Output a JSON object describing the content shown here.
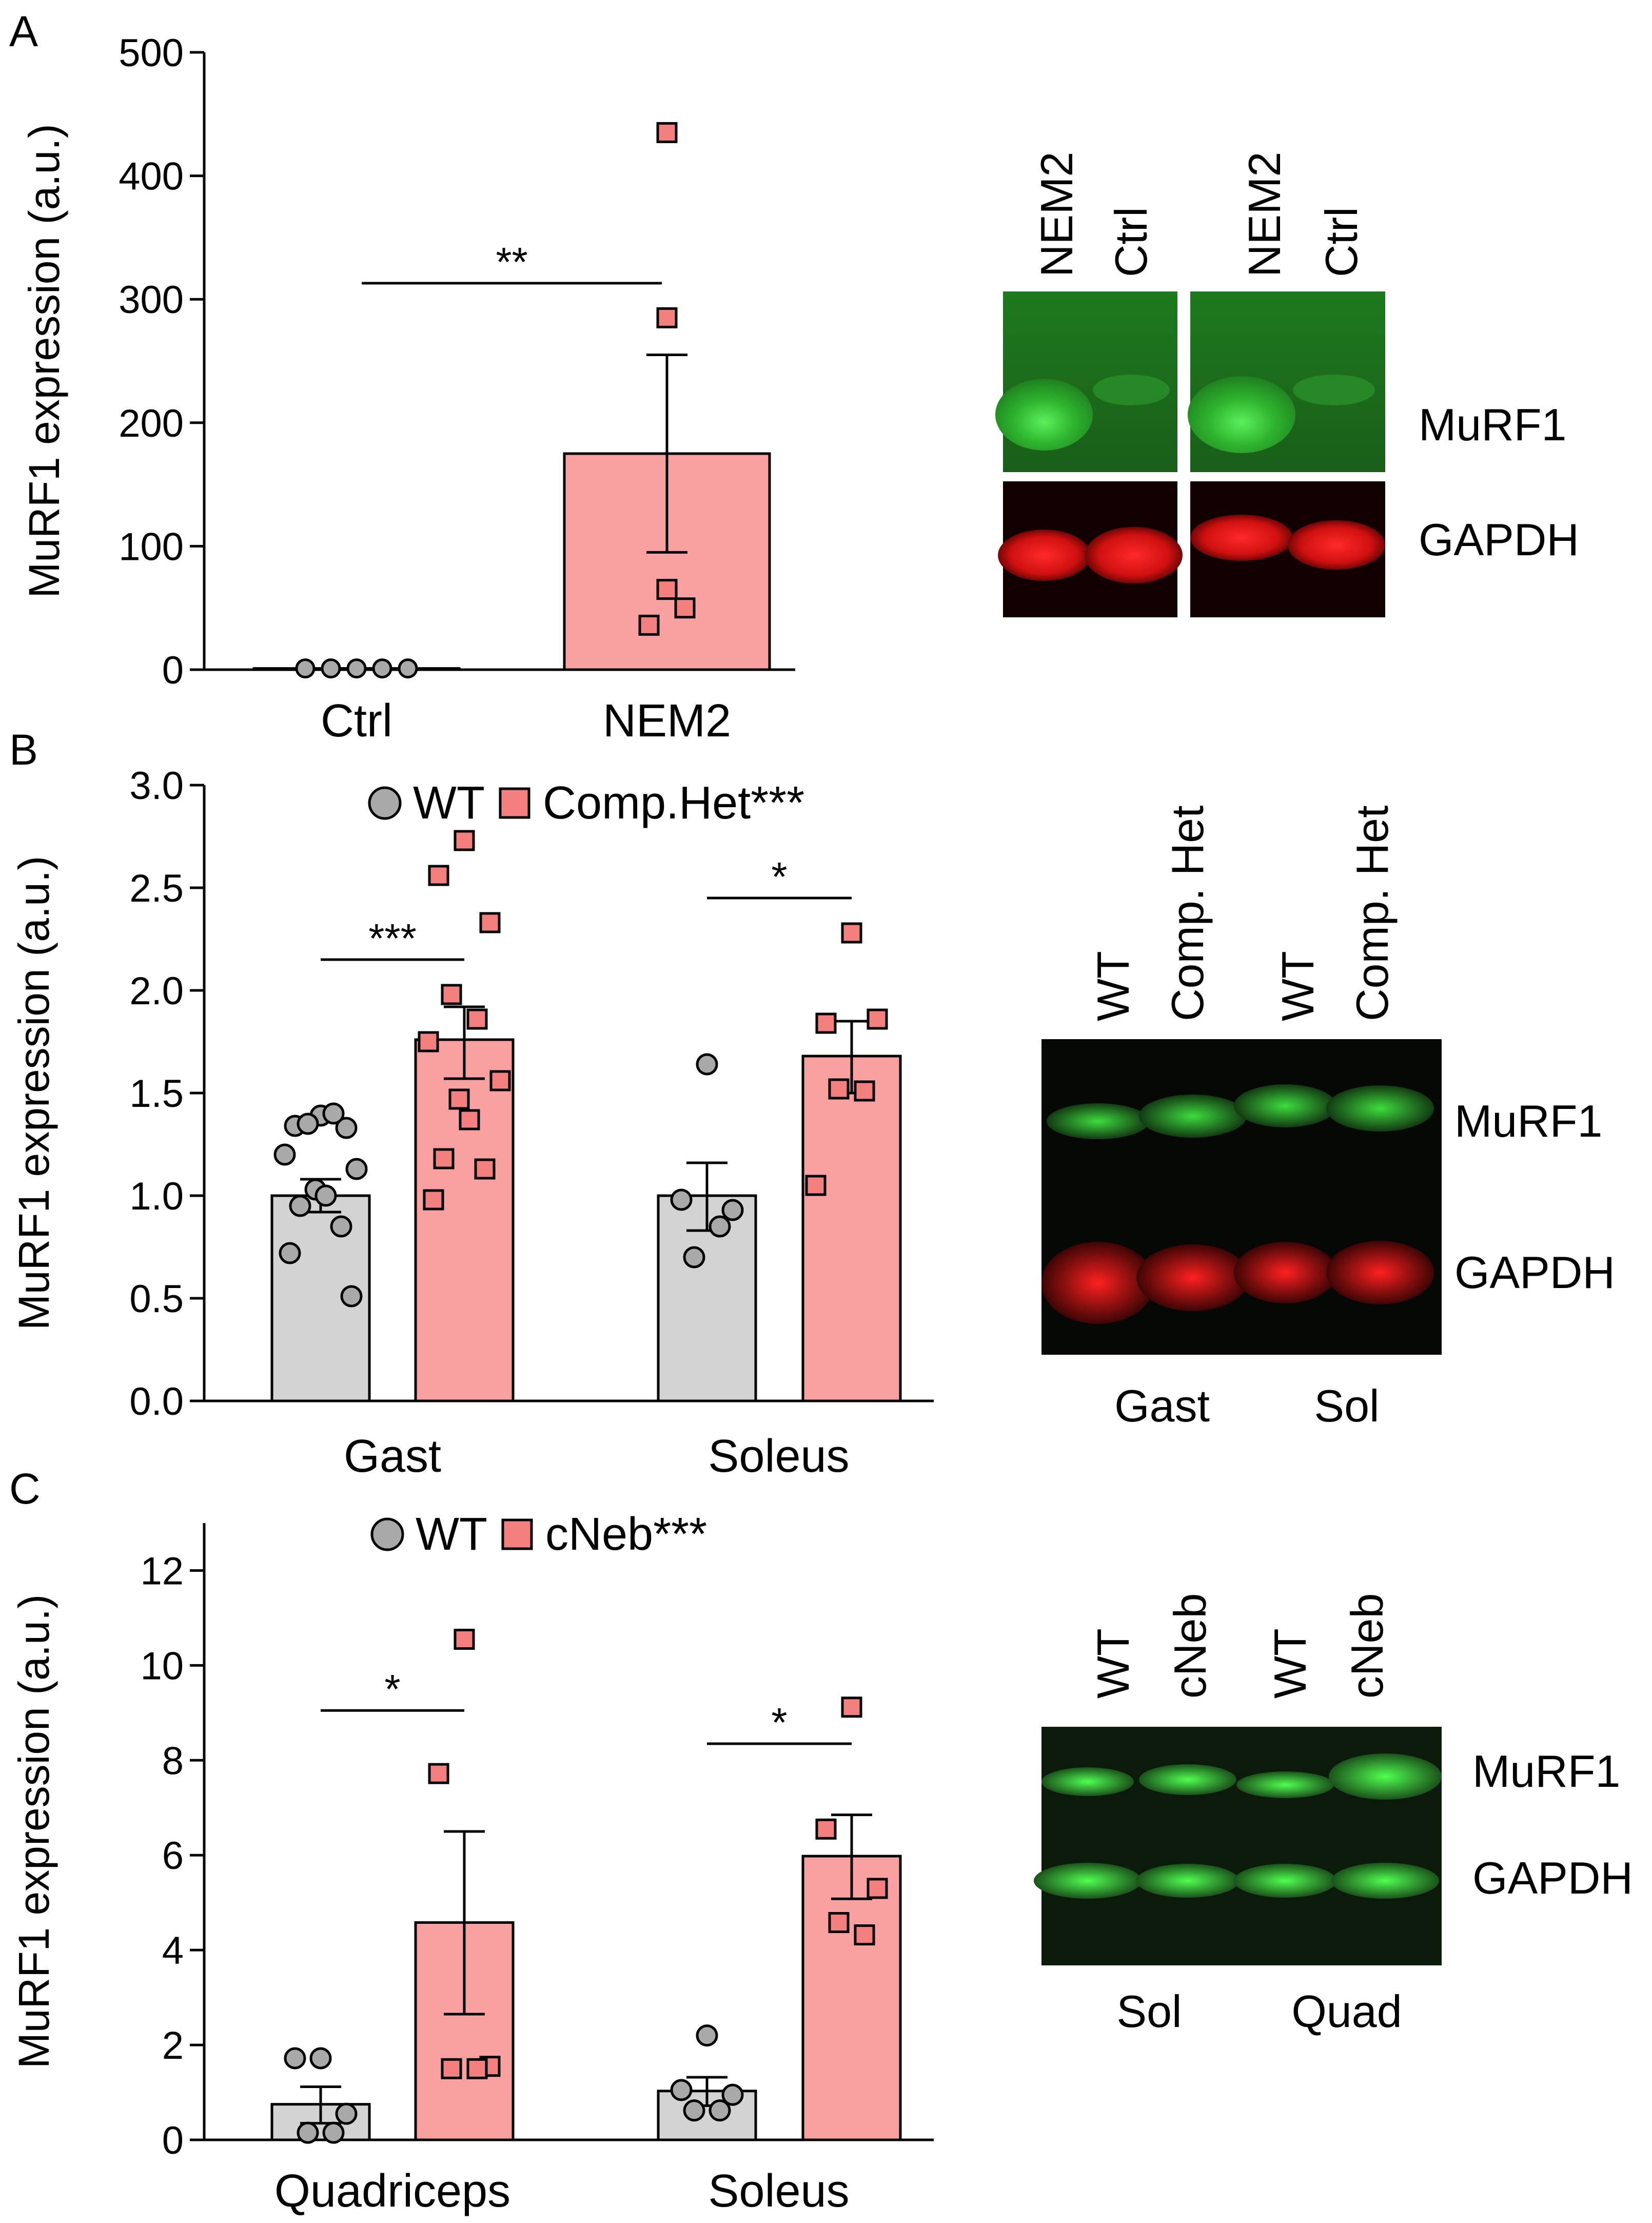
{
  "colors": {
    "wt_fill": "#d3d3d3",
    "wt_point": "#a9a9a9",
    "mutant_fill": "#f9a0a0",
    "mutant_point": "#f47f7f",
    "axis": "#000000"
  },
  "chart_data": [
    {
      "panel": "A",
      "type": "bar",
      "ylabel": "MuRF1 expression (a.u.)",
      "ylim": [
        0,
        500
      ],
      "yticks": [
        0,
        100,
        200,
        300,
        400,
        500
      ],
      "categories": [
        "Ctrl",
        "NEM2"
      ],
      "series": [
        {
          "group": "Ctrl",
          "mean": 1,
          "sem_low": 1,
          "sem_high": 1,
          "marker": "circle",
          "color": "wt",
          "points": [
            1,
            1,
            1,
            1,
            1
          ]
        },
        {
          "group": "NEM2",
          "mean": 175,
          "sem_low": 95,
          "sem_high": 255,
          "marker": "square",
          "color": "mutant",
          "points": [
            435,
            285,
            65,
            50,
            36
          ]
        }
      ],
      "significance": [
        {
          "label": "**",
          "from": "Ctrl",
          "to": "NEM2",
          "y": 313
        }
      ],
      "blot": {
        "lanes": [
          "NEM2",
          "Ctrl",
          "NEM2",
          "Ctrl"
        ],
        "bands": [
          "MuRF1",
          "GAPDH"
        ]
      }
    },
    {
      "panel": "B",
      "type": "bar",
      "ylabel": "MuRF1 expression (a.u.)",
      "ylim": [
        0,
        3.0
      ],
      "yticks": [
        "0.0",
        "0.5",
        "1.0",
        "1.5",
        "2.0",
        "2.5",
        "3.0"
      ],
      "categories": [
        "Gast",
        "Soleus"
      ],
      "legend": [
        {
          "name": "WT",
          "marker": "circle",
          "color": "wt"
        },
        {
          "name": "Comp.Het***",
          "marker": "square",
          "color": "mutant"
        }
      ],
      "legend_position": "top-center",
      "series": [
        {
          "category": "Gast",
          "name": "WT",
          "mean": 1.0,
          "sem_low": 0.92,
          "sem_high": 1.08,
          "points": [
            1.39,
            1.34,
            1.33,
            1.35,
            1.4,
            1.2,
            1.13,
            1.03,
            1.0,
            0.95,
            0.85,
            0.72,
            0.51
          ]
        },
        {
          "category": "Gast",
          "name": "Comp.Het",
          "mean": 1.76,
          "sem_low": 1.57,
          "sem_high": 1.92,
          "points": [
            2.73,
            2.56,
            2.33,
            1.98,
            1.86,
            1.75,
            1.56,
            1.47,
            1.37,
            1.18,
            1.13,
            0.98
          ]
        },
        {
          "category": "Soleus",
          "name": "WT",
          "mean": 1.0,
          "sem_low": 0.83,
          "sem_high": 1.16,
          "points": [
            1.64,
            0.98,
            0.93,
            0.7,
            0.85
          ]
        },
        {
          "category": "Soleus",
          "name": "Comp.Het",
          "mean": 1.68,
          "sem_low": 1.5,
          "sem_high": 1.85,
          "points": [
            2.28,
            1.84,
            1.86,
            1.52,
            1.51,
            1.05
          ]
        }
      ],
      "significance": [
        {
          "label": "***",
          "category": "Gast",
          "y": 2.15
        },
        {
          "label": "*",
          "category": "Soleus",
          "y": 2.45
        }
      ],
      "blot": {
        "lanes": [
          "WT",
          "Comp. Het",
          "WT",
          "Comp. Het"
        ],
        "bands": [
          "MuRF1",
          "GAPDH"
        ],
        "groups": [
          "Gast",
          "Sol"
        ]
      }
    },
    {
      "panel": "C",
      "type": "bar",
      "ylabel": "MuRF1 expression (a.u.)",
      "ylim": [
        0,
        13
      ],
      "yticks": [
        0,
        2,
        4,
        6,
        8,
        10,
        12
      ],
      "categories": [
        "Quadriceps",
        "Soleus"
      ],
      "legend": [
        {
          "name": "WT",
          "marker": "circle",
          "color": "wt"
        },
        {
          "name": "cNeb***",
          "marker": "square",
          "color": "mutant"
        }
      ],
      "legend_position": "top-center",
      "series": [
        {
          "category": "Quadriceps",
          "name": "WT",
          "mean": 0.75,
          "sem_low": 0.35,
          "sem_high": 1.12,
          "points": [
            1.72,
            1.72,
            0.55,
            0.15,
            0.15
          ]
        },
        {
          "category": "Quadriceps",
          "name": "cNeb",
          "mean": 4.58,
          "sem_low": 2.65,
          "sem_high": 6.5,
          "points": [
            10.55,
            7.72,
            1.55,
            1.5,
            1.5
          ]
        },
        {
          "category": "Soleus",
          "name": "WT",
          "mean": 1.03,
          "sem_low": 0.72,
          "sem_high": 1.32,
          "points": [
            2.2,
            1.05,
            0.95,
            0.62,
            0.62
          ]
        },
        {
          "category": "Soleus",
          "name": "cNeb",
          "mean": 5.98,
          "sem_low": 5.08,
          "sem_high": 6.85,
          "points": [
            9.12,
            6.55,
            5.3,
            4.58,
            4.32
          ]
        }
      ],
      "significance": [
        {
          "label": "*",
          "category": "Quadriceps",
          "y": 9.05
        },
        {
          "label": "*",
          "category": "Soleus",
          "y": 8.35
        }
      ],
      "blot": {
        "lanes": [
          "WT",
          "cNeb",
          "WT",
          "cNeb"
        ],
        "bands": [
          "MuRF1",
          "GAPDH"
        ],
        "groups": [
          "Sol",
          "Quad"
        ]
      }
    }
  ]
}
